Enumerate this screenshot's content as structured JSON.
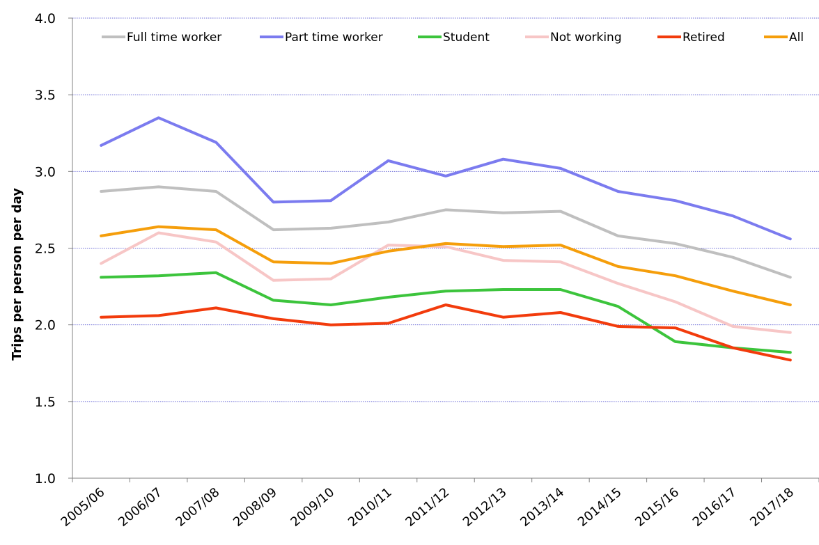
{
  "chart_data": {
    "type": "line",
    "title": "",
    "xlabel": "",
    "ylabel": "Trips per person per day",
    "ylim": [
      1.0,
      4.0
    ],
    "yticks": [
      "1.0",
      "1.5",
      "2.0",
      "2.5",
      "3.0",
      "3.5",
      "4.0"
    ],
    "yticks_values": [
      1.0,
      1.5,
      2.0,
      2.5,
      3.0,
      3.5,
      4.0
    ],
    "grid": "horizontal, dotted",
    "legend_position": "top",
    "categories": [
      "2005/06",
      "2006/07",
      "2007/08",
      "2008/09",
      "2009/10",
      "2010/11",
      "2011/12",
      "2012/13",
      "2013/14",
      "2014/15",
      "2015/16",
      "2016/17",
      "2017/18"
    ],
    "series": [
      {
        "name": "Full time worker",
        "color": "#bfbfbf",
        "values": [
          2.87,
          2.9,
          2.87,
          2.62,
          2.63,
          2.67,
          2.75,
          2.73,
          2.74,
          2.58,
          2.53,
          2.44,
          2.31
        ]
      },
      {
        "name": "Part time worker",
        "color": "#7b7bef",
        "values": [
          3.17,
          3.35,
          3.19,
          2.8,
          2.81,
          3.07,
          2.97,
          3.08,
          3.02,
          2.87,
          2.81,
          2.71,
          2.56
        ]
      },
      {
        "name": "Student",
        "color": "#3cc43c",
        "values": [
          2.31,
          2.32,
          2.34,
          2.16,
          2.13,
          2.18,
          2.22,
          2.23,
          2.23,
          2.12,
          1.89,
          1.85,
          1.82
        ]
      },
      {
        "name": "Not working",
        "color": "#f7c6c6",
        "values": [
          2.4,
          2.6,
          2.54,
          2.29,
          2.3,
          2.52,
          2.51,
          2.42,
          2.41,
          2.27,
          2.15,
          1.99,
          1.95
        ]
      },
      {
        "name": "Retired",
        "color": "#f23b0c",
        "values": [
          2.05,
          2.06,
          2.11,
          2.04,
          2.0,
          2.01,
          2.13,
          2.05,
          2.08,
          1.99,
          1.98,
          1.85,
          1.77
        ]
      },
      {
        "name": "All",
        "color": "#f59e0b",
        "values": [
          2.58,
          2.64,
          2.62,
          2.41,
          2.4,
          2.48,
          2.53,
          2.51,
          2.52,
          2.38,
          2.32,
          2.22,
          2.13
        ]
      }
    ]
  }
}
